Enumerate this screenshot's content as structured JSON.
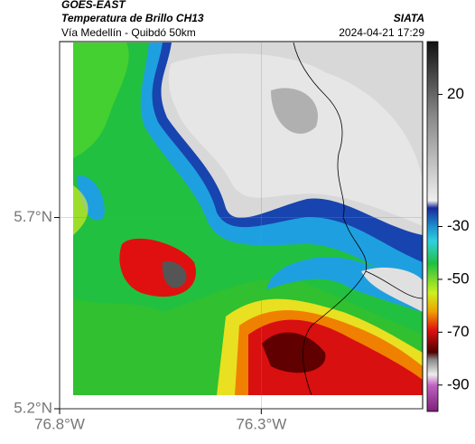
{
  "header": {
    "source": "GOES-EAST",
    "title": "Temperatura de Brillo CH13",
    "subtitle": "Vía Medellín - Quibdó 50km",
    "brand": "SIATA",
    "datetime": "2024-04-21 17:29"
  },
  "map": {
    "xlim": [
      -76.8,
      -75.9
    ],
    "ylim": [
      5.2,
      6.16
    ],
    "xticks": [
      {
        "value": -76.8,
        "label": "76.8°W"
      },
      {
        "value": -76.3,
        "label": "76.3°W"
      }
    ],
    "yticks": [
      {
        "value": 5.2,
        "label": "5.2°N"
      },
      {
        "value": 5.7,
        "label": "5.7°N"
      }
    ],
    "grid": true
  },
  "colorbar": {
    "lim": [
      -100,
      40
    ],
    "ticks": [
      20,
      -30,
      -50,
      -70,
      -90
    ]
  }
}
